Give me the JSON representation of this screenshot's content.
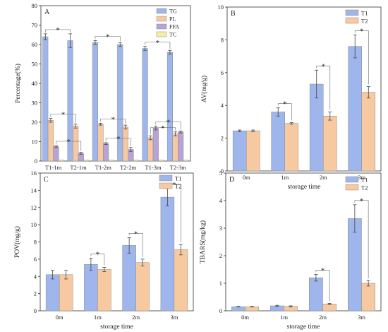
{
  "colors": {
    "TG": "#9fb6ec",
    "PL": "#f7c9a0",
    "FFA": "#b7a3d6",
    "TC": "#f6eea0",
    "T1": "#9fb6ec",
    "T2": "#f7c9a0",
    "axis": "#333333",
    "error": "#444444"
  },
  "chart_data": [
    {
      "id": "A",
      "type": "bar",
      "panel_label": "A",
      "ylabel": "Percentage(%)",
      "xlabel": "",
      "ylim": [
        0,
        80
      ],
      "yticks": [
        0,
        10,
        20,
        30,
        40,
        50,
        60,
        70,
        80
      ],
      "categories": [
        "T1-1m",
        "T2-1m",
        "T1-2m",
        "T2-2m",
        "T1-3m",
        "T2-3m"
      ],
      "legend_position": "top-right",
      "series": [
        {
          "name": "TG",
          "color_key": "TG",
          "values": [
            64,
            62,
            61,
            60,
            58,
            56
          ],
          "errors": [
            1.5,
            3.5,
            1.0,
            1.0,
            1.0,
            1.0
          ]
        },
        {
          "name": "PL",
          "color_key": "PL",
          "values": [
            21,
            18,
            19,
            17.5,
            12,
            14
          ],
          "errors": [
            1.0,
            1.0,
            0.5,
            1.0,
            1.0,
            1.0
          ]
        },
        {
          "name": "FFA",
          "color_key": "FFA",
          "values": [
            7.5,
            4,
            9,
            6,
            17,
            15
          ],
          "errors": [
            0.5,
            0.5,
            0.5,
            1.0,
            1.0,
            0.5
          ]
        },
        {
          "name": "TC",
          "color_key": "TC",
          "values": [
            0.5,
            0.5,
            0.5,
            0.5,
            0.5,
            0.5
          ],
          "errors": [
            0,
            0,
            0,
            0,
            0,
            0
          ]
        }
      ],
      "significance": [
        {
          "series": 0,
          "from": 0,
          "to": 1,
          "label": "*"
        },
        {
          "series": 0,
          "from": 2,
          "to": 3,
          "label": "*"
        },
        {
          "series": 0,
          "from": 4,
          "to": 5,
          "label": "*"
        },
        {
          "series": 1,
          "from": 0,
          "to": 1,
          "label": "*"
        },
        {
          "series": 1,
          "from": 2,
          "to": 3,
          "label": "*"
        },
        {
          "series": 1,
          "from": 4,
          "to": 5,
          "label": "*"
        },
        {
          "series": 2,
          "from": 0,
          "to": 1,
          "label": "*"
        },
        {
          "series": 2,
          "from": 2,
          "to": 3,
          "label": "*"
        },
        {
          "series": 2,
          "from": 4,
          "to": 5,
          "label": "*"
        }
      ]
    },
    {
      "id": "B",
      "type": "bar",
      "panel_label": "B",
      "ylabel": "AV(mg/g)",
      "xlabel": "storage time",
      "ylim": [
        0,
        10
      ],
      "yticks": [
        0,
        2,
        4,
        6,
        8,
        10
      ],
      "categories": [
        "0m",
        "1m",
        "2m",
        "3m"
      ],
      "legend_position": "top-right",
      "series": [
        {
          "name": "T1",
          "color_key": "T1",
          "values": [
            2.45,
            3.6,
            5.3,
            7.6
          ],
          "errors": [
            0.05,
            0.25,
            0.85,
            0.7
          ]
        },
        {
          "name": "T2",
          "color_key": "T2",
          "values": [
            2.45,
            2.9,
            3.35,
            4.8
          ],
          "errors": [
            0.05,
            0.05,
            0.25,
            0.35
          ]
        }
      ],
      "significance": [
        {
          "category": 1,
          "label": "*"
        },
        {
          "category": 2,
          "label": "*"
        },
        {
          "category": 3,
          "label": "*"
        }
      ]
    },
    {
      "id": "C",
      "type": "bar",
      "panel_label": "C",
      "ylabel": "POV(mg/g)",
      "xlabel": "storage time",
      "ylim": [
        0,
        16
      ],
      "yticks": [
        0,
        2,
        4,
        6,
        8,
        10,
        12,
        14,
        16
      ],
      "categories": [
        "0m",
        "1m",
        "2m",
        "3m"
      ],
      "legend_position": "top-right",
      "series": [
        {
          "name": "T1",
          "color_key": "T1",
          "values": [
            4.2,
            5.4,
            7.6,
            13.2
          ],
          "errors": [
            0.5,
            0.7,
            0.9,
            1.0
          ]
        },
        {
          "name": "T2",
          "color_key": "T2",
          "values": [
            4.2,
            4.8,
            5.6,
            7.1
          ],
          "errors": [
            0.5,
            0.25,
            0.4,
            0.6
          ]
        }
      ],
      "significance": [
        {
          "category": 1,
          "label": "*"
        },
        {
          "category": 2,
          "label": "*"
        },
        {
          "category": 3,
          "label": "*"
        }
      ]
    },
    {
      "id": "D",
      "type": "bar",
      "panel_label": "D",
      "ylabel": "TBARS(mg/kg)",
      "xlabel": "storage time",
      "ylim": [
        0,
        5
      ],
      "yticks": [
        0,
        1,
        2,
        3,
        4,
        5
      ],
      "categories": [
        "0m",
        "1m",
        "2m",
        "3m"
      ],
      "legend_position": "top-right",
      "series": [
        {
          "name": "T1",
          "color_key": "T1",
          "values": [
            0.15,
            0.18,
            1.2,
            3.35
          ],
          "errors": [
            0.01,
            0.02,
            0.12,
            0.5
          ]
        },
        {
          "name": "T2",
          "color_key": "T2",
          "values": [
            0.15,
            0.16,
            0.25,
            1.0
          ],
          "errors": [
            0.01,
            0.02,
            0.02,
            0.1
          ]
        }
      ],
      "significance": [
        {
          "category": 2,
          "label": "*"
        },
        {
          "category": 3,
          "label": "*"
        }
      ]
    }
  ]
}
